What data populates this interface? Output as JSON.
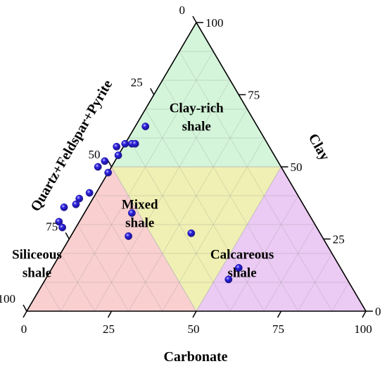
{
  "chart_data": {
    "type": "scatter",
    "subtype": "ternary",
    "axes": {
      "carbonate": {
        "label": "Carbonate",
        "ticks": [
          "0",
          "25",
          "50",
          "75",
          "100"
        ]
      },
      "clay": {
        "label": "Clay",
        "ticks": [
          "0",
          "25",
          "50",
          "75",
          "100"
        ]
      },
      "qfp": {
        "label": "Quartz+Feldspar+Pyrite",
        "ticks": [
          "0",
          "25",
          "50",
          "75",
          "100"
        ]
      }
    },
    "grid": true,
    "regions": [
      {
        "name": "Clay-rich shale",
        "lines": [
          "Clay-rich",
          "shale"
        ],
        "color": "#d4f5da"
      },
      {
        "name": "Mixed shale",
        "lines": [
          "Mixed",
          "shale"
        ],
        "color": "#f0f0b4"
      },
      {
        "name": "Siliceous shale",
        "lines": [
          "Siliceous",
          "shale"
        ],
        "color": "#f9cfcf"
      },
      {
        "name": "Calcareous shale",
        "lines": [
          "Calcareous",
          "shale"
        ],
        "color": "#ebcaf3"
      }
    ],
    "point_color": "#2a1fe0",
    "points": [
      {
        "carbonate": 3,
        "clay": 64
      },
      {
        "carbonate": 0,
        "clay": 58
      },
      {
        "carbonate": 2,
        "clay": 58
      },
      {
        "carbonate": 3,
        "clay": 58
      },
      {
        "carbonate": -2,
        "clay": 57
      },
      {
        "carbonate": 0,
        "clay": 54
      },
      {
        "carbonate": -3,
        "clay": 52
      },
      {
        "carbonate": -4,
        "clay": 50
      },
      {
        "carbonate": 0,
        "clay": 48
      },
      {
        "carbonate": -2,
        "clay": 41
      },
      {
        "carbonate": -4,
        "clay": 39
      },
      {
        "carbonate": -4,
        "clay": 37
      },
      {
        "carbonate": -7,
        "clay": 36
      },
      {
        "carbonate": -6,
        "clay": 31
      },
      {
        "carbonate": -4,
        "clay": 29
      },
      {
        "carbonate": 14,
        "clay": 34
      },
      {
        "carbonate": 17,
        "clay": 26
      },
      {
        "carbonate": 35,
        "clay": 27
      },
      {
        "carbonate": 55,
        "clay": 15
      },
      {
        "carbonate": 54,
        "clay": 11
      }
    ]
  }
}
